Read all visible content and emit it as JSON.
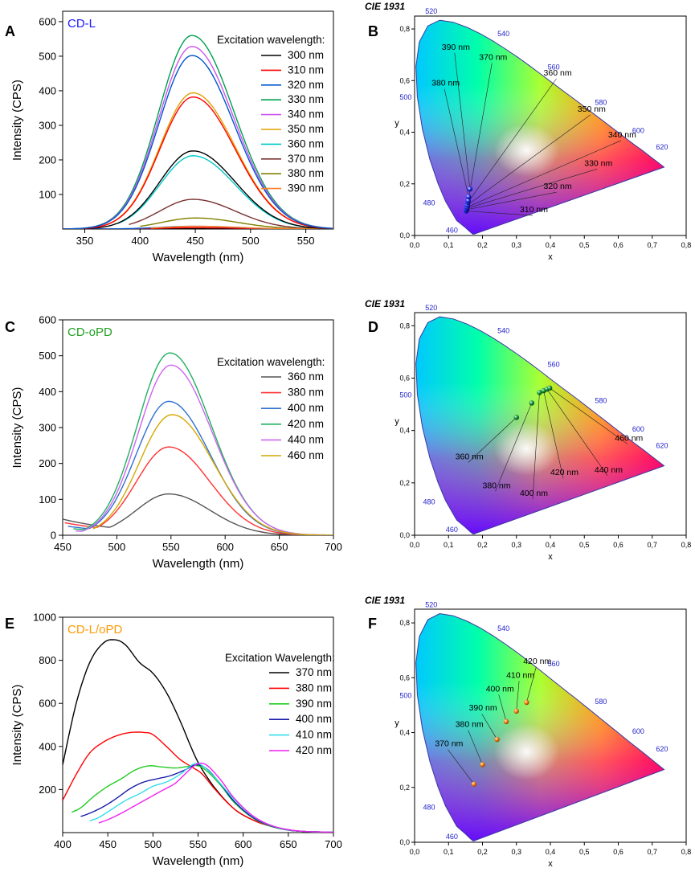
{
  "figure": {
    "cie_title": "CIE 1931",
    "axis_x_label": "x",
    "axis_y_label": "y",
    "cie_x_ticks": [
      "0,0",
      "0,1",
      "0,2",
      "0,3",
      "0,4",
      "0,5",
      "0,6",
      "0,7",
      "0,8"
    ],
    "cie_y_ticks": [
      "0,0",
      "0,2",
      "0,4",
      "0,6",
      "0,8"
    ],
    "locus_wavelengths": [
      "460",
      "480",
      "500",
      "520",
      "540",
      "560",
      "580",
      "600",
      "620"
    ]
  },
  "chart_data": [
    {
      "panel": "A",
      "type": "line",
      "title": "CD-L",
      "title_color": "#1a1aff",
      "xlabel": "Wavelength (nm)",
      "ylabel": "Intensity (CPS)",
      "xlim": [
        330,
        575
      ],
      "ylim": [
        0,
        630
      ],
      "xticks": [
        350,
        400,
        450,
        500,
        550
      ],
      "yticks": [
        100,
        200,
        300,
        400,
        500,
        600
      ],
      "legend_title": "Excitation wavelength:",
      "series": [
        {
          "name": "300 nm",
          "color": "#000000",
          "start": 330,
          "peak_x": 448,
          "peak_y": 2
        },
        {
          "name": "310 nm",
          "color": "#ff0000",
          "start": 330,
          "peak_x": 448,
          "peak_y": 4
        },
        {
          "name": "320 nm",
          "color": "#0055cc",
          "start": 330,
          "peak_x": 448,
          "peak_y": 8
        },
        {
          "name": "330 nm",
          "color": "#00a050",
          "start": 330,
          "peak_x": 447,
          "peak_y": 560
        },
        {
          "name": "340 nm",
          "color": "#cc55ee",
          "start": 350,
          "peak_x": 447,
          "peak_y": 528
        },
        {
          "name": "350 nm",
          "color": "#e0a000",
          "start": 360,
          "peak_x": 448,
          "peak_y": 394
        },
        {
          "name": "360 nm",
          "color": "#00c8c8",
          "start": 380,
          "peak_x": 448,
          "peak_y": 212
        },
        {
          "name": "370 nm",
          "color": "#7a3030",
          "start": 390,
          "peak_x": 448,
          "peak_y": 86
        },
        {
          "name": "380 nm",
          "color": "#808000",
          "start": 400,
          "peak_x": 450,
          "peak_y": 32
        },
        {
          "name": "390 nm",
          "color": "#ff7f27",
          "start": 410,
          "peak_x": 452,
          "peak_y": 8
        }
      ],
      "extra_curves": [
        {
          "color": "#000000",
          "start": 330,
          "peak_x": 448,
          "peak_y": 226
        },
        {
          "color": "#ff0000",
          "start": 330,
          "peak_x": 448,
          "peak_y": 382
        },
        {
          "color": "#0055cc",
          "start": 330,
          "peak_x": 447,
          "peak_y": 502
        }
      ]
    },
    {
      "panel": "C",
      "type": "line",
      "title": "CD-oPD",
      "title_color": "#22a022",
      "xlabel": "Wavelength (nm)",
      "ylabel": "Intensity (CPS)",
      "xlim": [
        450,
        700
      ],
      "ylim": [
        0,
        600
      ],
      "xticks": [
        450,
        500,
        550,
        600,
        650,
        700
      ],
      "yticks": [
        0,
        100,
        200,
        300,
        400,
        500,
        600
      ],
      "legend_title": "Excitation wavelength:",
      "series": [
        {
          "name": "360 nm",
          "color": "#555555",
          "start": 450,
          "peak_x": 548,
          "peak_y": 115,
          "base": 45
        },
        {
          "name": "380 nm",
          "color": "#ff3333",
          "start": 452,
          "peak_x": 548,
          "peak_y": 246,
          "base": 35
        },
        {
          "name": "400 nm",
          "color": "#3070d0",
          "start": 455,
          "peak_x": 548,
          "peak_y": 373,
          "base": 25
        },
        {
          "name": "420 nm",
          "color": "#20b060",
          "start": 460,
          "peak_x": 549,
          "peak_y": 508,
          "base": 18
        },
        {
          "name": "440 nm",
          "color": "#cc66ee",
          "start": 462,
          "peak_x": 550,
          "peak_y": 474,
          "base": 12
        },
        {
          "name": "460 nm",
          "color": "#d4a800",
          "start": 478,
          "peak_x": 551,
          "peak_y": 336,
          "base": 5
        }
      ]
    },
    {
      "panel": "E",
      "type": "line",
      "title": "CD-L/oPD",
      "title_color": "#ff9900",
      "xlabel": "Wavelength (nm)",
      "ylabel": "Intensity (CPS)",
      "xlim": [
        400,
        700
      ],
      "ylim": [
        0,
        1000
      ],
      "xticks": [
        400,
        450,
        500,
        550,
        600,
        650,
        700
      ],
      "yticks": [
        200,
        400,
        600,
        800,
        1000
      ],
      "legend_title": "Excitation Wavelength:",
      "series": [
        {
          "name": "370 nm",
          "color": "#000000",
          "start": 400,
          "pts": [
            [
              400,
              315
            ],
            [
              415,
              600
            ],
            [
              430,
              790
            ],
            [
              445,
              880
            ],
            [
              458,
              895
            ],
            [
              470,
              870
            ],
            [
              485,
              790
            ],
            [
              500,
              740
            ],
            [
              515,
              650
            ],
            [
              530,
              520
            ],
            [
              545,
              370
            ],
            [
              555,
              290
            ],
            [
              570,
              200
            ],
            [
              590,
              110
            ],
            [
              610,
              60
            ],
            [
              630,
              30
            ],
            [
              650,
              12
            ],
            [
              670,
              5
            ],
            [
              700,
              2
            ]
          ]
        },
        {
          "name": "380 nm",
          "color": "#ff0000",
          "start": 400,
          "pts": [
            [
              400,
              150
            ],
            [
              415,
              270
            ],
            [
              430,
              370
            ],
            [
              445,
              420
            ],
            [
              460,
              450
            ],
            [
              475,
              465
            ],
            [
              490,
              465
            ],
            [
              500,
              455
            ],
            [
              515,
              400
            ],
            [
              530,
              340
            ],
            [
              545,
              300
            ],
            [
              555,
              270
            ],
            [
              570,
              195
            ],
            [
              590,
              110
            ],
            [
              610,
              60
            ],
            [
              630,
              30
            ],
            [
              650,
              12
            ],
            [
              670,
              5
            ],
            [
              700,
              2
            ]
          ]
        },
        {
          "name": "390 nm",
          "color": "#22cc22",
          "start": 410,
          "pts": [
            [
              410,
              95
            ],
            [
              420,
              115
            ],
            [
              435,
              170
            ],
            [
              450,
              215
            ],
            [
              465,
              250
            ],
            [
              480,
              290
            ],
            [
              495,
              310
            ],
            [
              510,
              305
            ],
            [
              525,
              300
            ],
            [
              540,
              308
            ],
            [
              550,
              310
            ],
            [
              560,
              285
            ],
            [
              575,
              220
            ],
            [
              590,
              140
            ],
            [
              610,
              70
            ],
            [
              630,
              30
            ],
            [
              650,
              12
            ],
            [
              670,
              5
            ],
            [
              700,
              2
            ]
          ]
        },
        {
          "name": "400 nm",
          "color": "#1a1aaa",
          "start": 420,
          "pts": [
            [
              420,
              75
            ],
            [
              430,
              90
            ],
            [
              445,
              120
            ],
            [
              460,
              160
            ],
            [
              475,
              205
            ],
            [
              490,
              235
            ],
            [
              505,
              250
            ],
            [
              520,
              265
            ],
            [
              535,
              290
            ],
            [
              548,
              315
            ],
            [
              560,
              295
            ],
            [
              575,
              225
            ],
            [
              590,
              145
            ],
            [
              610,
              72
            ],
            [
              630,
              32
            ],
            [
              650,
              12
            ],
            [
              670,
              5
            ],
            [
              700,
              2
            ]
          ]
        },
        {
          "name": "410 nm",
          "color": "#33ddee",
          "start": 430,
          "pts": [
            [
              430,
              55
            ],
            [
              440,
              70
            ],
            [
              455,
              110
            ],
            [
              470,
              150
            ],
            [
              485,
              180
            ],
            [
              500,
              215
            ],
            [
              515,
              235
            ],
            [
              530,
              270
            ],
            [
              545,
              318
            ],
            [
              555,
              310
            ],
            [
              570,
              250
            ],
            [
              590,
              155
            ],
            [
              610,
              78
            ],
            [
              630,
              34
            ],
            [
              650,
              13
            ],
            [
              670,
              5
            ],
            [
              700,
              2
            ]
          ]
        },
        {
          "name": "420 nm",
          "color": "#ee22ee",
          "start": 440,
          "pts": [
            [
              440,
              45
            ],
            [
              450,
              60
            ],
            [
              465,
              90
            ],
            [
              480,
              125
            ],
            [
              495,
              160
            ],
            [
              510,
              195
            ],
            [
              525,
              230
            ],
            [
              540,
              290
            ],
            [
              550,
              320
            ],
            [
              560,
              312
            ],
            [
              575,
              245
            ],
            [
              590,
              160
            ],
            [
              610,
              80
            ],
            [
              630,
              35
            ],
            [
              650,
              14
            ],
            [
              670,
              5
            ],
            [
              700,
              2
            ]
          ]
        }
      ]
    },
    {
      "panel": "B",
      "type": "scatter",
      "title": "CIE 1931",
      "xlabel": "x",
      "ylabel": "y",
      "xlim": [
        0,
        0.8
      ],
      "ylim": [
        0,
        0.85
      ],
      "points": [
        {
          "name": "310 nm",
          "x": 0.152,
          "y": 0.095,
          "label_x": 0.31,
          "label_y": 0.09,
          "color": "#1a1acc"
        },
        {
          "name": "320 nm",
          "x": 0.153,
          "y": 0.1,
          "label_x": 0.38,
          "label_y": 0.18,
          "color": "#1a1acc"
        },
        {
          "name": "330 nm",
          "x": 0.154,
          "y": 0.105,
          "label_x": 0.5,
          "label_y": 0.27,
          "color": "#1a1acc"
        },
        {
          "name": "340 nm",
          "x": 0.155,
          "y": 0.11,
          "label_x": 0.57,
          "label_y": 0.38,
          "color": "#1a1acc"
        },
        {
          "name": "350 nm",
          "x": 0.156,
          "y": 0.118,
          "label_x": 0.48,
          "label_y": 0.48,
          "color": "#1a1acc"
        },
        {
          "name": "360 nm",
          "x": 0.157,
          "y": 0.128,
          "label_x": 0.38,
          "label_y": 0.62,
          "color": "#1a1acc"
        },
        {
          "name": "370 nm",
          "x": 0.158,
          "y": 0.135,
          "label_x": 0.19,
          "label_y": 0.68,
          "color": "#1a1acc"
        },
        {
          "name": "380 nm",
          "x": 0.159,
          "y": 0.15,
          "label_x": 0.05,
          "label_y": 0.58,
          "color": "#1a1acc"
        },
        {
          "name": "390 nm",
          "x": 0.163,
          "y": 0.18,
          "label_x": 0.08,
          "label_y": 0.72,
          "color": "#1a1acc"
        }
      ]
    },
    {
      "panel": "D",
      "type": "scatter",
      "title": "CIE 1931",
      "xlabel": "x",
      "ylabel": "y",
      "xlim": [
        0,
        0.8
      ],
      "ylim": [
        0,
        0.85
      ],
      "points": [
        {
          "name": "360 nm",
          "x": 0.3,
          "y": 0.45,
          "label_x": 0.12,
          "label_y": 0.29,
          "color": "#1a8a3a"
        },
        {
          "name": "380 nm",
          "x": 0.345,
          "y": 0.505,
          "label_x": 0.2,
          "label_y": 0.18,
          "color": "#1a8a3a"
        },
        {
          "name": "400 nm",
          "x": 0.368,
          "y": 0.545,
          "label_x": 0.31,
          "label_y": 0.15,
          "color": "#1a8a3a"
        },
        {
          "name": "420 nm",
          "x": 0.38,
          "y": 0.552,
          "label_x": 0.4,
          "label_y": 0.23,
          "color": "#1a8a3a"
        },
        {
          "name": "440 nm",
          "x": 0.39,
          "y": 0.558,
          "label_x": 0.53,
          "label_y": 0.24,
          "color": "#1a8a3a"
        },
        {
          "name": "460 nm",
          "x": 0.398,
          "y": 0.562,
          "label_x": 0.59,
          "label_y": 0.36,
          "color": "#1a8a3a"
        }
      ]
    },
    {
      "panel": "F",
      "type": "scatter",
      "title": "CIE 1931",
      "xlabel": "x",
      "ylabel": "y",
      "xlim": [
        0,
        0.8
      ],
      "ylim": [
        0,
        0.85
      ],
      "points": [
        {
          "name": "370 nm",
          "x": 0.175,
          "y": 0.212,
          "label_x": 0.06,
          "label_y": 0.35,
          "color": "#ff8c1a"
        },
        {
          "name": "380 nm",
          "x": 0.2,
          "y": 0.283,
          "label_x": 0.12,
          "label_y": 0.42,
          "color": "#ff8c1a"
        },
        {
          "name": "390 nm",
          "x": 0.243,
          "y": 0.375,
          "label_x": 0.16,
          "label_y": 0.48,
          "color": "#ff8c1a"
        },
        {
          "name": "400 nm",
          "x": 0.27,
          "y": 0.44,
          "label_x": 0.21,
          "label_y": 0.55,
          "color": "#ff8c1a"
        },
        {
          "name": "410 nm",
          "x": 0.3,
          "y": 0.478,
          "label_x": 0.27,
          "label_y": 0.6,
          "color": "#ff8c1a"
        },
        {
          "name": "420 nm",
          "x": 0.33,
          "y": 0.51,
          "label_x": 0.32,
          "label_y": 0.65,
          "color": "#ff8c1a"
        }
      ]
    }
  ]
}
